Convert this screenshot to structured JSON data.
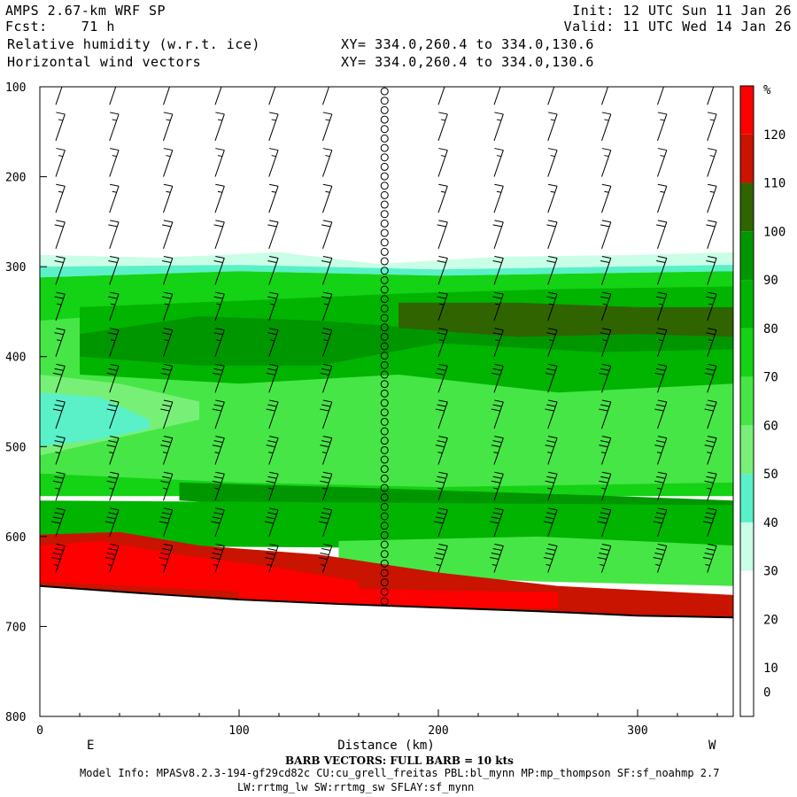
{
  "header": {
    "title": "AMPS 2.67-km WRF SP",
    "fcst_label": "Fcst:",
    "fcst_value": "71 h",
    "init": "Init: 12 UTC Sun 11 Jan 26",
    "valid": "Valid: 11 UTC Wed 14 Jan 26",
    "field1": "Relative humidity (w.r.t. ice)",
    "field2": "Horizontal wind vectors",
    "xy1": "XY= 334.0,260.4 to 334.0,130.6",
    "xy2": "XY= 334.0,260.4 to 334.0,130.6"
  },
  "chart_data": {
    "type": "heatmap",
    "subtype": "vertical cross-section with wind barbs",
    "xlabel": "Distance (km)",
    "x_range": [
      0,
      348
    ],
    "x_ticks": [
      0,
      100,
      200,
      300
    ],
    "y_range": [
      100,
      800
    ],
    "y_ticks": [
      100,
      200,
      300,
      400,
      500,
      600,
      700,
      800
    ],
    "y_axis_note": "pressure (hPa), increasing downward",
    "direction_labels": {
      "left": "E",
      "right": "W"
    },
    "colorbar": {
      "unit": "%",
      "levels": [
        0,
        10,
        20,
        30,
        40,
        50,
        60,
        70,
        80,
        90,
        100,
        110,
        120
      ],
      "colors": [
        "#ffffff",
        "#ffffff",
        "#ffffff",
        "#c8ffe6",
        "#5af0c8",
        "#78f078",
        "#46e646",
        "#14d214",
        "#00b400",
        "#009600",
        "#2f6400",
        "#c81400",
        "#ff0000"
      ]
    },
    "terrain_pressure": [
      {
        "x": 0,
        "p": 655
      },
      {
        "x": 50,
        "p": 663
      },
      {
        "x": 100,
        "p": 670
      },
      {
        "x": 150,
        "p": 675
      },
      {
        "x": 200,
        "p": 679
      },
      {
        "x": 250,
        "p": 683
      },
      {
        "x": 300,
        "p": 688
      },
      {
        "x": 348,
        "p": 690
      }
    ],
    "rh_layers": [
      {
        "rh": 35,
        "top": [
          [
            0,
            287
          ],
          [
            60,
            290
          ],
          [
            120,
            284
          ],
          [
            170,
            297
          ],
          [
            230,
            289
          ],
          [
            300,
            287
          ],
          [
            348,
            284
          ]
        ],
        "bottom": [
          [
            0,
            300
          ],
          [
            100,
            298
          ],
          [
            200,
            303
          ],
          [
            348,
            298
          ]
        ]
      },
      {
        "rh": 45,
        "top": [
          [
            0,
            300
          ],
          [
            100,
            298
          ],
          [
            200,
            303
          ],
          [
            348,
            298
          ]
        ],
        "bottom": [
          [
            0,
            312
          ],
          [
            100,
            305
          ],
          [
            200,
            310
          ],
          [
            348,
            305
          ]
        ]
      },
      {
        "rh": 75,
        "top": [
          [
            0,
            312
          ],
          [
            100,
            305
          ],
          [
            200,
            310
          ],
          [
            348,
            305
          ]
        ],
        "bottom": [
          [
            0,
            555
          ],
          [
            348,
            555
          ]
        ]
      },
      {
        "rh": 65,
        "top": [
          [
            0,
            360
          ],
          [
            60,
            350
          ],
          [
            140,
            345
          ],
          [
            200,
            360
          ],
          [
            280,
            370
          ],
          [
            348,
            370
          ]
        ],
        "bottom": [
          [
            0,
            530
          ],
          [
            100,
            540
          ],
          [
            200,
            545
          ],
          [
            348,
            540
          ]
        ]
      },
      {
        "rh": 85,
        "top": [
          [
            20,
            345
          ],
          [
            100,
            338
          ],
          [
            180,
            330
          ],
          [
            260,
            325
          ],
          [
            348,
            322
          ]
        ],
        "bottom": [
          [
            20,
            420
          ],
          [
            100,
            430
          ],
          [
            180,
            420
          ],
          [
            260,
            440
          ],
          [
            348,
            430
          ]
        ]
      },
      {
        "rh": 95,
        "top": [
          [
            20,
            375
          ],
          [
            80,
            355
          ],
          [
            140,
            360
          ],
          [
            200,
            370
          ],
          [
            280,
            370
          ],
          [
            348,
            365
          ]
        ],
        "bottom": [
          [
            20,
            400
          ],
          [
            80,
            410
          ],
          [
            140,
            410
          ],
          [
            200,
            385
          ],
          [
            280,
            395
          ],
          [
            348,
            392
          ]
        ]
      },
      {
        "rh": 105,
        "top": [
          [
            180,
            340
          ],
          [
            240,
            340
          ],
          [
            300,
            345
          ],
          [
            348,
            345
          ]
        ],
        "bottom": [
          [
            180,
            368
          ],
          [
            240,
            378
          ],
          [
            300,
            375
          ],
          [
            348,
            378
          ]
        ]
      },
      {
        "rh": 55,
        "top": [
          [
            0,
            420
          ],
          [
            40,
            430
          ],
          [
            80,
            450
          ]
        ],
        "bottom": [
          [
            0,
            510
          ],
          [
            40,
            490
          ],
          [
            80,
            470
          ]
        ]
      },
      {
        "rh": 45,
        "top": [
          [
            0,
            440
          ],
          [
            30,
            445
          ],
          [
            55,
            470
          ]
        ],
        "bottom": [
          [
            0,
            500
          ],
          [
            30,
            492
          ],
          [
            55,
            480
          ]
        ]
      },
      {
        "rh": 95,
        "top": [
          [
            70,
            540
          ],
          [
            150,
            545
          ],
          [
            220,
            550
          ],
          [
            290,
            555
          ],
          [
            348,
            560
          ]
        ],
        "bottom": [
          [
            70,
            560
          ],
          [
            150,
            570
          ],
          [
            220,
            580
          ],
          [
            290,
            585
          ],
          [
            348,
            590
          ]
        ]
      },
      {
        "rh": 85,
        "top": [
          [
            0,
            560
          ],
          [
            348,
            565
          ]
        ],
        "bottom": [
          [
            0,
            610
          ],
          [
            348,
            615
          ]
        ]
      },
      {
        "rh": 65,
        "top": [
          [
            150,
            605
          ],
          [
            250,
            600
          ],
          [
            348,
            610
          ]
        ],
        "bottom": [
          [
            150,
            640
          ],
          [
            250,
            650
          ],
          [
            348,
            655
          ]
        ]
      },
      {
        "rh": 115,
        "top": [
          [
            0,
            598
          ],
          [
            40,
            595
          ],
          [
            80,
            610
          ],
          [
            140,
            620
          ],
          [
            200,
            640
          ],
          [
            260,
            655
          ],
          [
            348,
            665
          ]
        ],
        "bottom": [
          [
            0,
            660
          ],
          [
            348,
            692
          ]
        ]
      },
      {
        "rh": 125,
        "top": [
          [
            0,
            610
          ],
          [
            30,
            605
          ],
          [
            70,
            620
          ],
          [
            120,
            635
          ],
          [
            160,
            650
          ]
        ],
        "bottom": [
          [
            0,
            650
          ],
          [
            160,
            668
          ]
        ]
      },
      {
        "rh": 125,
        "top": [
          [
            100,
            655
          ],
          [
            200,
            660
          ],
          [
            260,
            662
          ]
        ],
        "bottom": [
          [
            100,
            672
          ],
          [
            200,
            678
          ],
          [
            260,
            680
          ]
        ]
      }
    ],
    "barb_columns": [
      {
        "x": 8,
        "levels": [
          120,
          160,
          200,
          240,
          280,
          320,
          360,
          400,
          440,
          480,
          520,
          560,
          600,
          640
        ],
        "kt": [
          15,
          15,
          15,
          15,
          20,
          20,
          25,
          25,
          30,
          30,
          35,
          35,
          40,
          45
        ]
      },
      {
        "x": 35,
        "levels": [
          120,
          160,
          200,
          240,
          280,
          320,
          360,
          400,
          440,
          480,
          520,
          560,
          600,
          640
        ],
        "kt": [
          15,
          15,
          15,
          15,
          20,
          20,
          25,
          25,
          30,
          30,
          35,
          35,
          40,
          45
        ]
      },
      {
        "x": 62,
        "levels": [
          120,
          160,
          200,
          240,
          280,
          320,
          360,
          400,
          440,
          480,
          520,
          560,
          600,
          640
        ],
        "kt": [
          15,
          15,
          15,
          15,
          20,
          20,
          25,
          25,
          30,
          30,
          35,
          35,
          40,
          45
        ]
      },
      {
        "x": 88,
        "levels": [
          120,
          160,
          200,
          240,
          280,
          320,
          360,
          400,
          440,
          480,
          520,
          560,
          600,
          640
        ],
        "kt": [
          15,
          15,
          15,
          15,
          20,
          20,
          25,
          25,
          30,
          30,
          35,
          35,
          40,
          45
        ]
      },
      {
        "x": 115,
        "levels": [
          120,
          160,
          200,
          240,
          280,
          320,
          360,
          400,
          440,
          480,
          520,
          560,
          600,
          640
        ],
        "kt": [
          15,
          15,
          15,
          15,
          20,
          20,
          25,
          25,
          30,
          30,
          35,
          35,
          40,
          45
        ]
      },
      {
        "x": 142,
        "levels": [
          120,
          160,
          200,
          240,
          280,
          320,
          360,
          400,
          440,
          480,
          520,
          560,
          600,
          640
        ],
        "kt": [
          15,
          15,
          15,
          15,
          20,
          20,
          25,
          25,
          30,
          30,
          35,
          35,
          40,
          45
        ]
      },
      {
        "x": 200,
        "levels": [
          120,
          160,
          200,
          240,
          280,
          320,
          360,
          400,
          440,
          480,
          520,
          560,
          600,
          640
        ],
        "kt": [
          15,
          15,
          15,
          15,
          20,
          20,
          25,
          25,
          30,
          30,
          35,
          35,
          40,
          45
        ]
      },
      {
        "x": 228,
        "levels": [
          120,
          160,
          200,
          240,
          280,
          320,
          360,
          400,
          440,
          480,
          520,
          560,
          600,
          640
        ],
        "kt": [
          15,
          15,
          15,
          15,
          20,
          20,
          25,
          25,
          30,
          30,
          35,
          35,
          40,
          45
        ]
      },
      {
        "x": 255,
        "levels": [
          120,
          160,
          200,
          240,
          280,
          320,
          360,
          400,
          440,
          480,
          520,
          560,
          600,
          640
        ],
        "kt": [
          15,
          15,
          15,
          15,
          20,
          20,
          25,
          25,
          30,
          30,
          35,
          35,
          40,
          45
        ]
      },
      {
        "x": 282,
        "levels": [
          120,
          160,
          200,
          240,
          280,
          320,
          360,
          400,
          440,
          480,
          520,
          560,
          600,
          640
        ],
        "kt": [
          15,
          15,
          15,
          15,
          20,
          20,
          25,
          25,
          30,
          30,
          35,
          35,
          40,
          45
        ]
      },
      {
        "x": 310,
        "levels": [
          120,
          160,
          200,
          240,
          280,
          320,
          360,
          400,
          440,
          480,
          520,
          560,
          600,
          640
        ],
        "kt": [
          15,
          15,
          15,
          15,
          20,
          20,
          25,
          25,
          30,
          30,
          35,
          35,
          40,
          45
        ]
      },
      {
        "x": 335,
        "levels": [
          120,
          160,
          200,
          240,
          280,
          320,
          360,
          400,
          440,
          480,
          520,
          560,
          600,
          640
        ],
        "kt": [
          15,
          15,
          15,
          15,
          20,
          20,
          25,
          25,
          30,
          30,
          35,
          35,
          40,
          45
        ]
      }
    ],
    "calm_column_x": 173
  },
  "footer": {
    "barb_note": "BARB VECTORS:  FULL BARB = 10 kts",
    "model_info": "Model Info: MPASv8.2.3-194-gf29cd82c CU:cu_grell_freitas PBL:bl_mynn MP:mp_thompson SF:sf_noahmp 2.7",
    "model_info2": "LW:rrtmg_lw SW:rrtmg_sw SFLAY:sf_mynn"
  }
}
